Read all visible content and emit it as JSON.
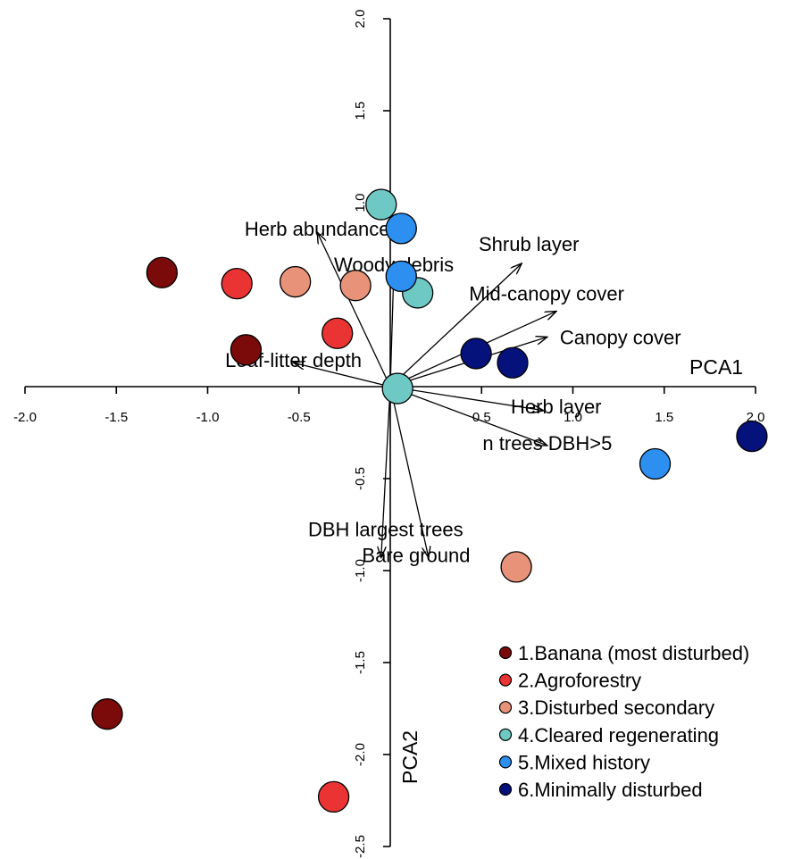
{
  "chart_data": {
    "type": "scatter",
    "xlabel": "PCA1",
    "ylabel": "PCA2",
    "xlim": [
      -2.0,
      2.0
    ],
    "ylim": [
      -2.5,
      2.0
    ],
    "x_ticks": [
      "-2.0",
      "-1.5",
      "-1.0",
      "-0.5",
      "0.5",
      "1.0",
      "1.5",
      "2.0"
    ],
    "y_ticks": [
      "2.0",
      "1.5",
      "1.0",
      "-0.5",
      "-1.0",
      "-1.5",
      "-2.0",
      "-2.5"
    ],
    "grid": false,
    "legend_position": "bottom-right",
    "series": [
      {
        "name": "1.Banana (most disturbed)",
        "color": "#7b0a0a",
        "points": [
          {
            "x": -1.25,
            "y": 0.62
          },
          {
            "x": -0.79,
            "y": 0.2
          },
          {
            "x": -1.55,
            "y": -1.78
          }
        ]
      },
      {
        "name": "2.Agroforestry",
        "color": "#ea3434",
        "points": [
          {
            "x": -0.84,
            "y": 0.56
          },
          {
            "x": -0.29,
            "y": 0.29
          },
          {
            "x": -0.31,
            "y": -2.23
          }
        ]
      },
      {
        "name": "3.Disturbed secondary",
        "color": "#e8927a",
        "points": [
          {
            "x": -0.52,
            "y": 0.57
          },
          {
            "x": -0.19,
            "y": 0.55
          },
          {
            "x": 0.69,
            "y": -0.98
          }
        ]
      },
      {
        "name": "4.Cleared regenerating",
        "color": "#6ec9c4",
        "points": [
          {
            "x": -0.05,
            "y": 0.99
          },
          {
            "x": 0.15,
            "y": 0.51
          },
          {
            "x": 0.04,
            "y": -0.01
          }
        ]
      },
      {
        "name": "5.Mixed history",
        "color": "#2d8ff0",
        "points": [
          {
            "x": 0.06,
            "y": 0.86
          },
          {
            "x": 0.06,
            "y": 0.6
          },
          {
            "x": 1.45,
            "y": -0.42
          }
        ]
      },
      {
        "name": "6.Minimally disturbed",
        "color": "#06127c",
        "points": [
          {
            "x": 0.47,
            "y": 0.18
          },
          {
            "x": 0.67,
            "y": 0.13
          },
          {
            "x": 1.98,
            "y": -0.27
          }
        ]
      }
    ],
    "vectors": [
      {
        "name": "Herb abundance",
        "x": -0.4,
        "y": 0.84
      },
      {
        "name": "Woody debris",
        "x": 0.02,
        "y": 0.65
      },
      {
        "name": "Shrub layer",
        "x": 0.72,
        "y": 0.67
      },
      {
        "name": "Mid-canopy cover",
        "x": 0.91,
        "y": 0.41
      },
      {
        "name": "Canopy cover",
        "x": 0.86,
        "y": 0.27
      },
      {
        "name": "Leaf-litter depth",
        "x": -0.53,
        "y": 0.13
      },
      {
        "name": "Herb layer",
        "x": 0.84,
        "y": -0.13
      },
      {
        "name": "n trees DBH>5",
        "x": 0.86,
        "y": -0.32
      },
      {
        "name": "DBH largest trees",
        "x": -0.05,
        "y": -0.93
      },
      {
        "name": "Bare ground",
        "x": 0.21,
        "y": -0.93
      }
    ]
  }
}
